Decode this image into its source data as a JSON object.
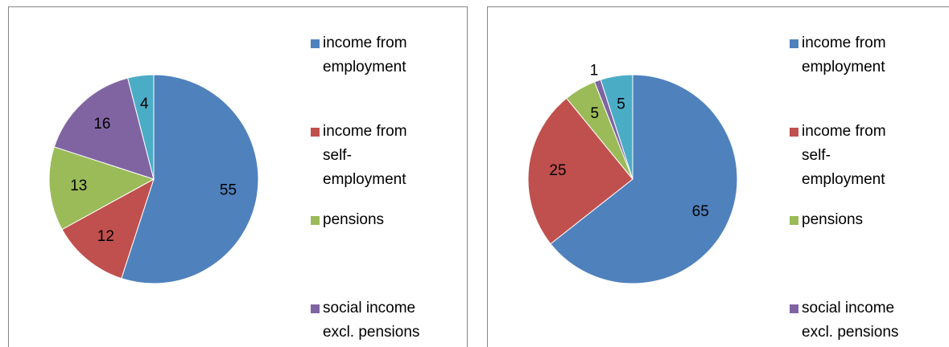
{
  "chart_data": [
    {
      "type": "pie",
      "categories": [
        "income from employment",
        "income from self-employment",
        "pensions",
        "social income excl. pensions",
        null
      ],
      "values": [
        55,
        12,
        13,
        16,
        4
      ],
      "colors": [
        "#4f81bd",
        "#c0504d",
        "#9bbb59",
        "#8064a2",
        "#4bacc6"
      ],
      "legend": "right"
    },
    {
      "type": "pie",
      "categories": [
        "income from employment",
        "income from self-employment",
        "pensions",
        "social income excl. pensions",
        null
      ],
      "values": [
        65,
        25,
        5,
        1,
        5
      ],
      "colors": [
        "#4f81bd",
        "#c0504d",
        "#9bbb59",
        "#8064a2",
        "#4bacc6"
      ],
      "legend": "right"
    }
  ]
}
